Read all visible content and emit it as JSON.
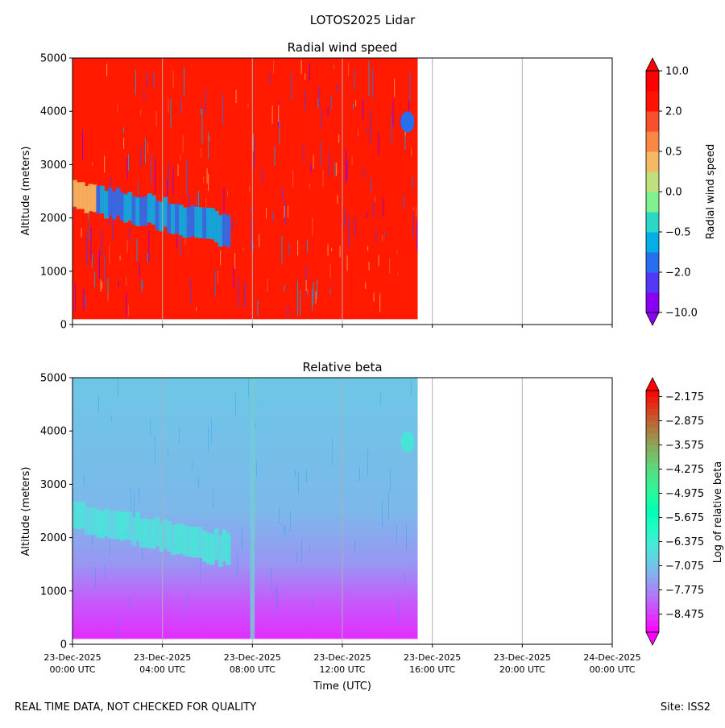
{
  "figure": {
    "suptitle": "LOTOS2025 Lidar",
    "footer_left": "REAL TIME DATA, NOT CHECKED FOR QUALITY",
    "footer_right": "Site: ISS2"
  },
  "x_axis": {
    "label": "Time (UTC)",
    "range_hours": [
      0,
      24
    ],
    "ticks": [
      {
        "hour": 0,
        "date": "23-Dec-2025",
        "time": "00:00 UTC"
      },
      {
        "hour": 4,
        "date": "23-Dec-2025",
        "time": "04:00 UTC"
      },
      {
        "hour": 8,
        "date": "23-Dec-2025",
        "time": "08:00 UTC"
      },
      {
        "hour": 12,
        "date": "23-Dec-2025",
        "time": "12:00 UTC"
      },
      {
        "hour": 16,
        "date": "23-Dec-2025",
        "time": "16:00 UTC"
      },
      {
        "hour": 20,
        "date": "23-Dec-2025",
        "time": "20:00 UTC"
      },
      {
        "hour": 24,
        "date": "24-Dec-2025",
        "time": "00:00 UTC"
      }
    ],
    "gridlines": true
  },
  "chart_data": [
    {
      "type": "heatmap",
      "title": "Radial wind speed",
      "ylabel": "Altitude (meters)",
      "ylim": [
        0,
        5000
      ],
      "yticks": [
        "0",
        "1000",
        "2000",
        "3000",
        "4000",
        "5000"
      ],
      "data_time_range_hours": [
        0,
        15.35
      ],
      "data_altitude_range": [
        100,
        5000
      ],
      "colorbar": {
        "label": "Radial wind speed",
        "levels": [
          -10,
          -5,
          -2,
          -1,
          -0.5,
          -0.25,
          0,
          0.25,
          0.5,
          1,
          2,
          5,
          10
        ],
        "tick_labels": [
          "10.0",
          "2.0",
          "0.5",
          "0.0",
          "−0.5",
          "−2.0",
          "−10.0"
        ],
        "tick_values": [
          10,
          2,
          0.5,
          0,
          -0.5,
          -2,
          -10
        ],
        "colors": [
          "#8a00f0",
          "#5338f5",
          "#2a6ef0",
          "#06aee8",
          "#2bd8c8",
          "#7ff28e",
          "#c0e07e",
          "#f4b963",
          "#fc8745",
          "#f8502c",
          "#ff1300",
          "#ff0000"
        ],
        "extend": "both"
      },
      "features": [
        {
          "desc": "tilted cloud layer",
          "hours": [
            0,
            7
          ],
          "altitude_start": [
            2600,
            2100
          ],
          "altitude_end": [
            2000,
            1400
          ],
          "value": -0.5
        },
        {
          "desc": "cloud patch",
          "hours": [
            14.6,
            15.2
          ],
          "altitude": [
            3600,
            4000
          ],
          "value": -1
        }
      ]
    },
    {
      "type": "heatmap",
      "title": "Relative beta",
      "ylabel": "Altitude (meters)",
      "ylim": [
        0,
        5000
      ],
      "yticks": [
        "0",
        "1000",
        "2000",
        "3000",
        "4000",
        "5000"
      ],
      "data_time_range_hours": [
        0,
        15.35
      ],
      "data_altitude_range": [
        100,
        5000
      ],
      "colorbar": {
        "label": "Log of relative beta",
        "range": [
          -9.0,
          -2.0
        ],
        "tick_labels": [
          "−2.175",
          "−2.875",
          "−3.575",
          "−4.275",
          "−4.975",
          "−5.675",
          "−6.375",
          "−7.075",
          "−7.775",
          "−8.475"
        ],
        "tick_values": [
          -2.175,
          -2.875,
          -3.575,
          -4.275,
          -4.975,
          -5.675,
          -6.375,
          -7.075,
          -7.775,
          -8.475
        ],
        "extend": "both"
      },
      "profile": [
        {
          "altitude": 100,
          "value": -8.6
        },
        {
          "altitude": 800,
          "value": -8.2
        },
        {
          "altitude": 1500,
          "value": -7.6
        },
        {
          "altitude": 2500,
          "value": -7.2
        },
        {
          "altitude": 5000,
          "value": -7.0
        }
      ],
      "features": [
        {
          "desc": "tilted cloud layer",
          "hours": [
            0,
            7
          ],
          "altitude_start": [
            2600,
            2100
          ],
          "altitude_end": [
            2000,
            1400
          ],
          "value": -6.4
        },
        {
          "desc": "vertical stripe",
          "hours": [
            7.9,
            8.1
          ],
          "altitude": [
            100,
            5000
          ],
          "value": -6.8
        },
        {
          "desc": "cloud patch",
          "hours": [
            14.6,
            15.2
          ],
          "altitude": [
            3600,
            4000
          ],
          "value": -6.4
        }
      ]
    }
  ]
}
